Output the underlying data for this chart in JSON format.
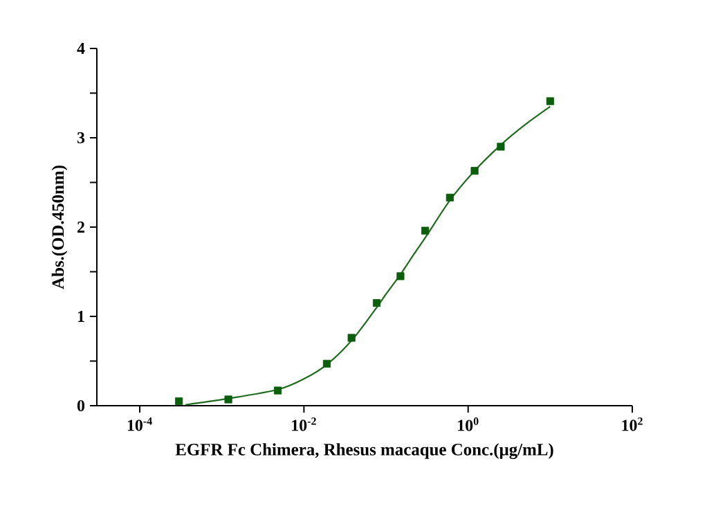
{
  "chart_data": {
    "type": "scatter",
    "xlabel": "EGFR Fc Chimera, Rhesus macaque  Conc.(μg/mL)",
    "ylabel": "Abs.(OD.450nm)",
    "log": "x",
    "xlim": [
      3e-05,
      100
    ],
    "xticks": [
      {
        "value": 0.0001,
        "label": "10$^{-4}$"
      },
      {
        "value": 0.01,
        "label": "10$^{-2}$"
      },
      {
        "value": 1,
        "label": "10$^{0}$"
      },
      {
        "value": 100,
        "label": "10$^{2}$"
      }
    ],
    "ylim": [
      0,
      4
    ],
    "yticks": [
      0,
      {
        "value": 0.5,
        "label": null
      },
      1,
      {
        "value": 1.5,
        "label": null
      },
      2,
      {
        "value": 2.5,
        "label": null
      },
      3,
      {
        "value": 3.5,
        "label": null
      },
      4
    ],
    "series": [
      {
        "color": "#0b5e0b",
        "marker": "square",
        "x": [
          0.0003,
          0.0012,
          0.0048,
          0.019,
          0.038,
          0.077,
          0.15,
          0.3,
          0.6,
          1.2,
          2.5,
          10
        ],
        "values": [
          0.05,
          0.07,
          0.17,
          0.47,
          0.76,
          1.15,
          1.45,
          1.96,
          2.33,
          2.63,
          2.9,
          3.41
        ]
      },
      {
        "type": "line",
        "marker": "none",
        "color": "#1e6b1e",
        "x": [
          0.00036,
          0.0012,
          0.0048,
          0.01,
          0.019,
          0.039,
          0.077,
          0.1,
          0.15,
          0.22,
          0.31,
          0.6,
          1.2,
          2.5,
          5,
          10
        ],
        "values": [
          0.01,
          0.08,
          0.18,
          0.3,
          0.46,
          0.74,
          1.1,
          1.25,
          1.47,
          1.7,
          1.9,
          2.3,
          2.63,
          2.92,
          3.15,
          3.35
        ]
      }
    ]
  }
}
